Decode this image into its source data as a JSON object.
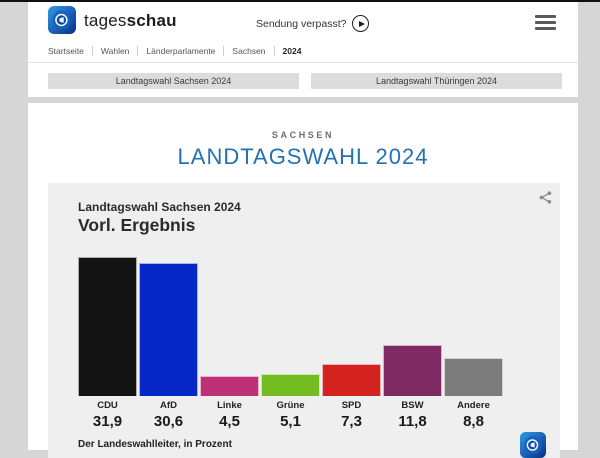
{
  "header": {
    "brand_regular": "tages",
    "brand_bold": "schau",
    "broadcast_link": "Sendung verpasst?"
  },
  "breadcrumb": {
    "items": [
      "Startseite",
      "Wahlen",
      "Länderparlamente",
      "Sachsen",
      "2024"
    ]
  },
  "tabs": [
    {
      "label": "Landtagswahl Sachsen 2024"
    },
    {
      "label": "Landtagswahl Thüringen 2024"
    }
  ],
  "page": {
    "kicker": "SACHSEN",
    "title": "LANDTAGSWAHL 2024"
  },
  "chart": {
    "title": "Landtagswahl Sachsen 2024",
    "subtitle": "Vorl. Ergebnis",
    "source": "Der Landeswahlleiter, in Prozent"
  },
  "chart_data": {
    "type": "bar",
    "title": "Landtagswahl Sachsen 2024 — Vorl. Ergebnis",
    "categories": [
      "CDU",
      "AfD",
      "Linke",
      "Grüne",
      "SPD",
      "BSW",
      "Andere"
    ],
    "values": [
      31.9,
      30.6,
      4.5,
      5.1,
      7.3,
      11.8,
      8.8
    ],
    "value_labels": [
      "31,9",
      "30,6",
      "4,5",
      "5,1",
      "7,3",
      "11,8",
      "8,8"
    ],
    "bar_colors": [
      "#131313",
      "#0626c8",
      "#be3075",
      "#74bc1f",
      "#d42221",
      "#7f2a62",
      "#7c7c7c"
    ],
    "ylabel": "Prozent",
    "ylim": [
      0,
      34
    ],
    "grid": false,
    "legend": false
  },
  "colors": {
    "page_margin": "#d6d6d6",
    "surface": "#ffffff",
    "card_background": "#efefef",
    "tab_background": "#dcdcdc",
    "title_blue": "#2471b2",
    "brand_blue_dark": "#0a2f86",
    "brand_blue_light": "#2f9ae8"
  },
  "icons": {
    "menu": "hamburger-icon",
    "play": "play-icon",
    "share": "share-icon",
    "brand": "tagesschau-globe-icon"
  }
}
